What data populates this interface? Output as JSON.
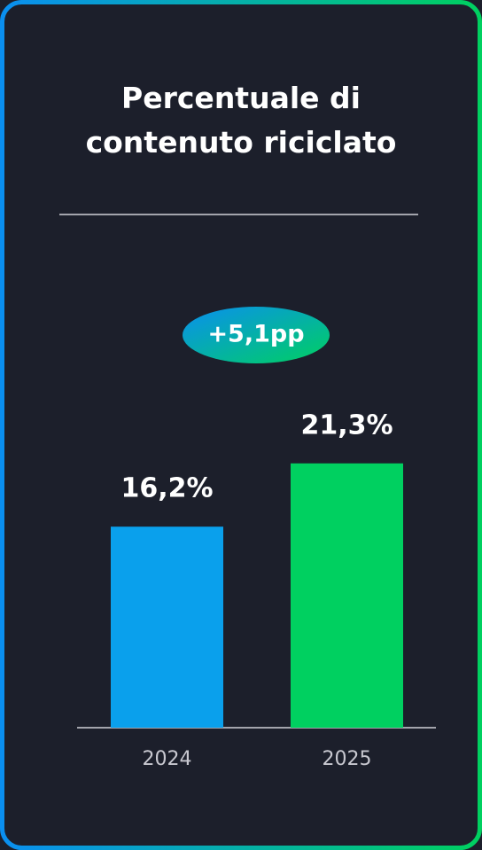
{
  "chart_data": {
    "type": "bar",
    "title": "Percentuale di contenuto riciclato",
    "annotation": "+5,1pp",
    "categories": [
      "2024",
      "2025"
    ],
    "values": [
      16.2,
      21.3
    ],
    "value_labels": [
      "16,2%",
      "21,3%"
    ],
    "colors": [
      "#0aa0ec",
      "#00d060"
    ]
  }
}
